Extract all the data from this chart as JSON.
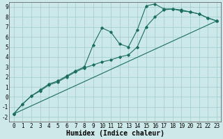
{
  "xlabel": "Humidex (Indice chaleur)",
  "xlim": [
    -0.5,
    23.5
  ],
  "ylim": [
    -2.5,
    9.5
  ],
  "xticks": [
    0,
    1,
    2,
    3,
    4,
    5,
    6,
    7,
    8,
    9,
    10,
    11,
    12,
    13,
    14,
    15,
    16,
    17,
    18,
    19,
    20,
    21,
    22,
    23
  ],
  "yticks": [
    -2,
    -1,
    0,
    1,
    2,
    3,
    4,
    5,
    6,
    7,
    8,
    9
  ],
  "bg_color": "#cde8e8",
  "grid_color": "#a0cccc",
  "line_color": "#1a6e5e",
  "line1_x": [
    0,
    1,
    2,
    3,
    4,
    5,
    6,
    7,
    8,
    9,
    10,
    11,
    12,
    13,
    14,
    15,
    16,
    17,
    18,
    19,
    20,
    21,
    22,
    23
  ],
  "line1_y": [
    -1.7,
    -0.7,
    0.1,
    0.7,
    1.3,
    1.6,
    2.1,
    2.6,
    3.0,
    5.2,
    6.9,
    6.5,
    5.3,
    5.0,
    6.7,
    9.1,
    9.3,
    8.8,
    8.8,
    8.6,
    8.5,
    8.3,
    7.9,
    7.6
  ],
  "line2_x": [
    0,
    1,
    2,
    3,
    4,
    5,
    6,
    7,
    8,
    9,
    10,
    11,
    12,
    13,
    14,
    15,
    16,
    17,
    18,
    19,
    20,
    21,
    22,
    23
  ],
  "line2_y": [
    -1.7,
    -0.7,
    0.1,
    0.6,
    1.2,
    1.5,
    2.0,
    2.5,
    2.9,
    3.2,
    3.5,
    3.7,
    4.0,
    4.2,
    5.0,
    7.0,
    8.0,
    8.7,
    8.8,
    8.7,
    8.5,
    8.3,
    7.9,
    7.6
  ],
  "line3_x": [
    0,
    23
  ],
  "line3_y": [
    -1.7,
    7.6
  ],
  "font_name": "monospace",
  "tick_fontsize": 5.5,
  "label_fontsize": 7
}
